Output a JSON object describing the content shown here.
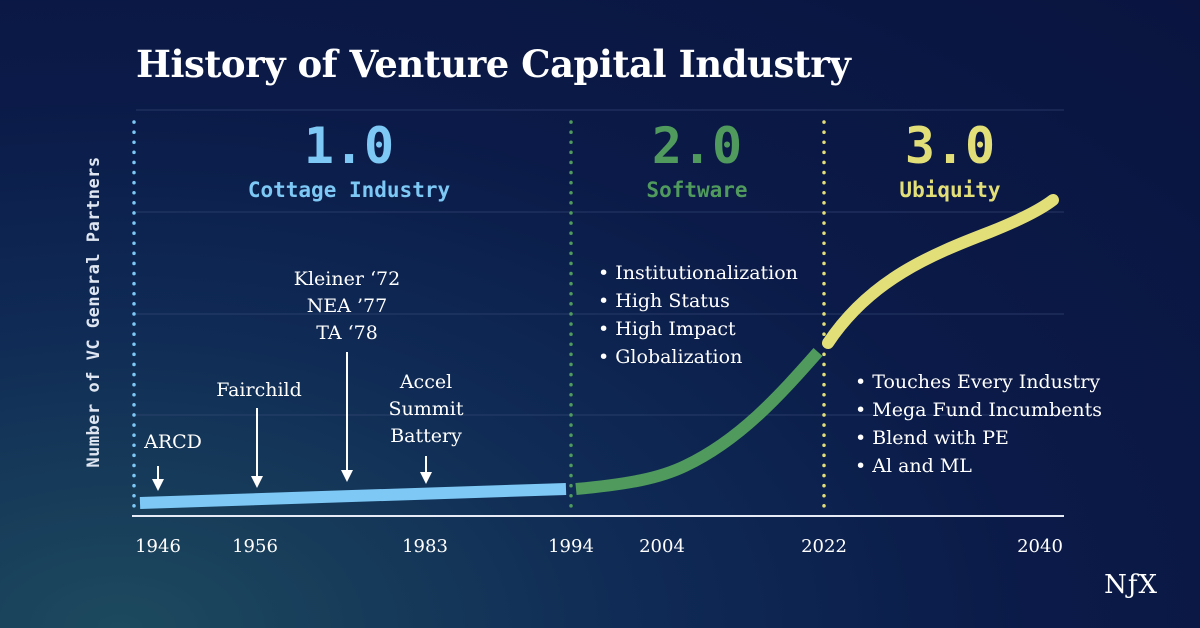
{
  "chart_data": {
    "type": "line",
    "title": "History of Venture Capital Industry",
    "ylabel": "Number of VC General Partners",
    "xlabel": "",
    "x_ticks": [
      1946,
      1956,
      1983,
      1994,
      2004,
      2022,
      2040
    ],
    "eras": [
      {
        "number": "1.0",
        "name": "Cottage Industry",
        "start": 1946,
        "end": 1994,
        "color": "#7dc8f5",
        "bullets": []
      },
      {
        "number": "2.0",
        "name": "Software",
        "start": 1994,
        "end": 2022,
        "color": "#4f9a5c",
        "bullets": [
          "• Institutionalization",
          "• High Status",
          "• High Impact",
          "• Globalization"
        ]
      },
      {
        "number": "3.0",
        "name": "Ubiquity",
        "start": 2022,
        "end": 2040,
        "color": "#e3df78",
        "bullets": [
          "• Touches Every Industry",
          "• Mega Fund Incumbents",
          "• Blend with PE",
          "• Al and ML"
        ]
      }
    ],
    "annotations": [
      {
        "lines": [
          "ARCD"
        ],
        "year": 1946
      },
      {
        "lines": [
          "Fairchild"
        ],
        "year": 1956
      },
      {
        "lines": [
          "Kleiner ‘72",
          "NEA ’77",
          "TA ‘78"
        ],
        "year": 1975
      },
      {
        "lines": [
          "Accel",
          "Summit",
          "Battery"
        ],
        "year": 1983
      }
    ],
    "grid": true
  },
  "logo": "NƒX"
}
